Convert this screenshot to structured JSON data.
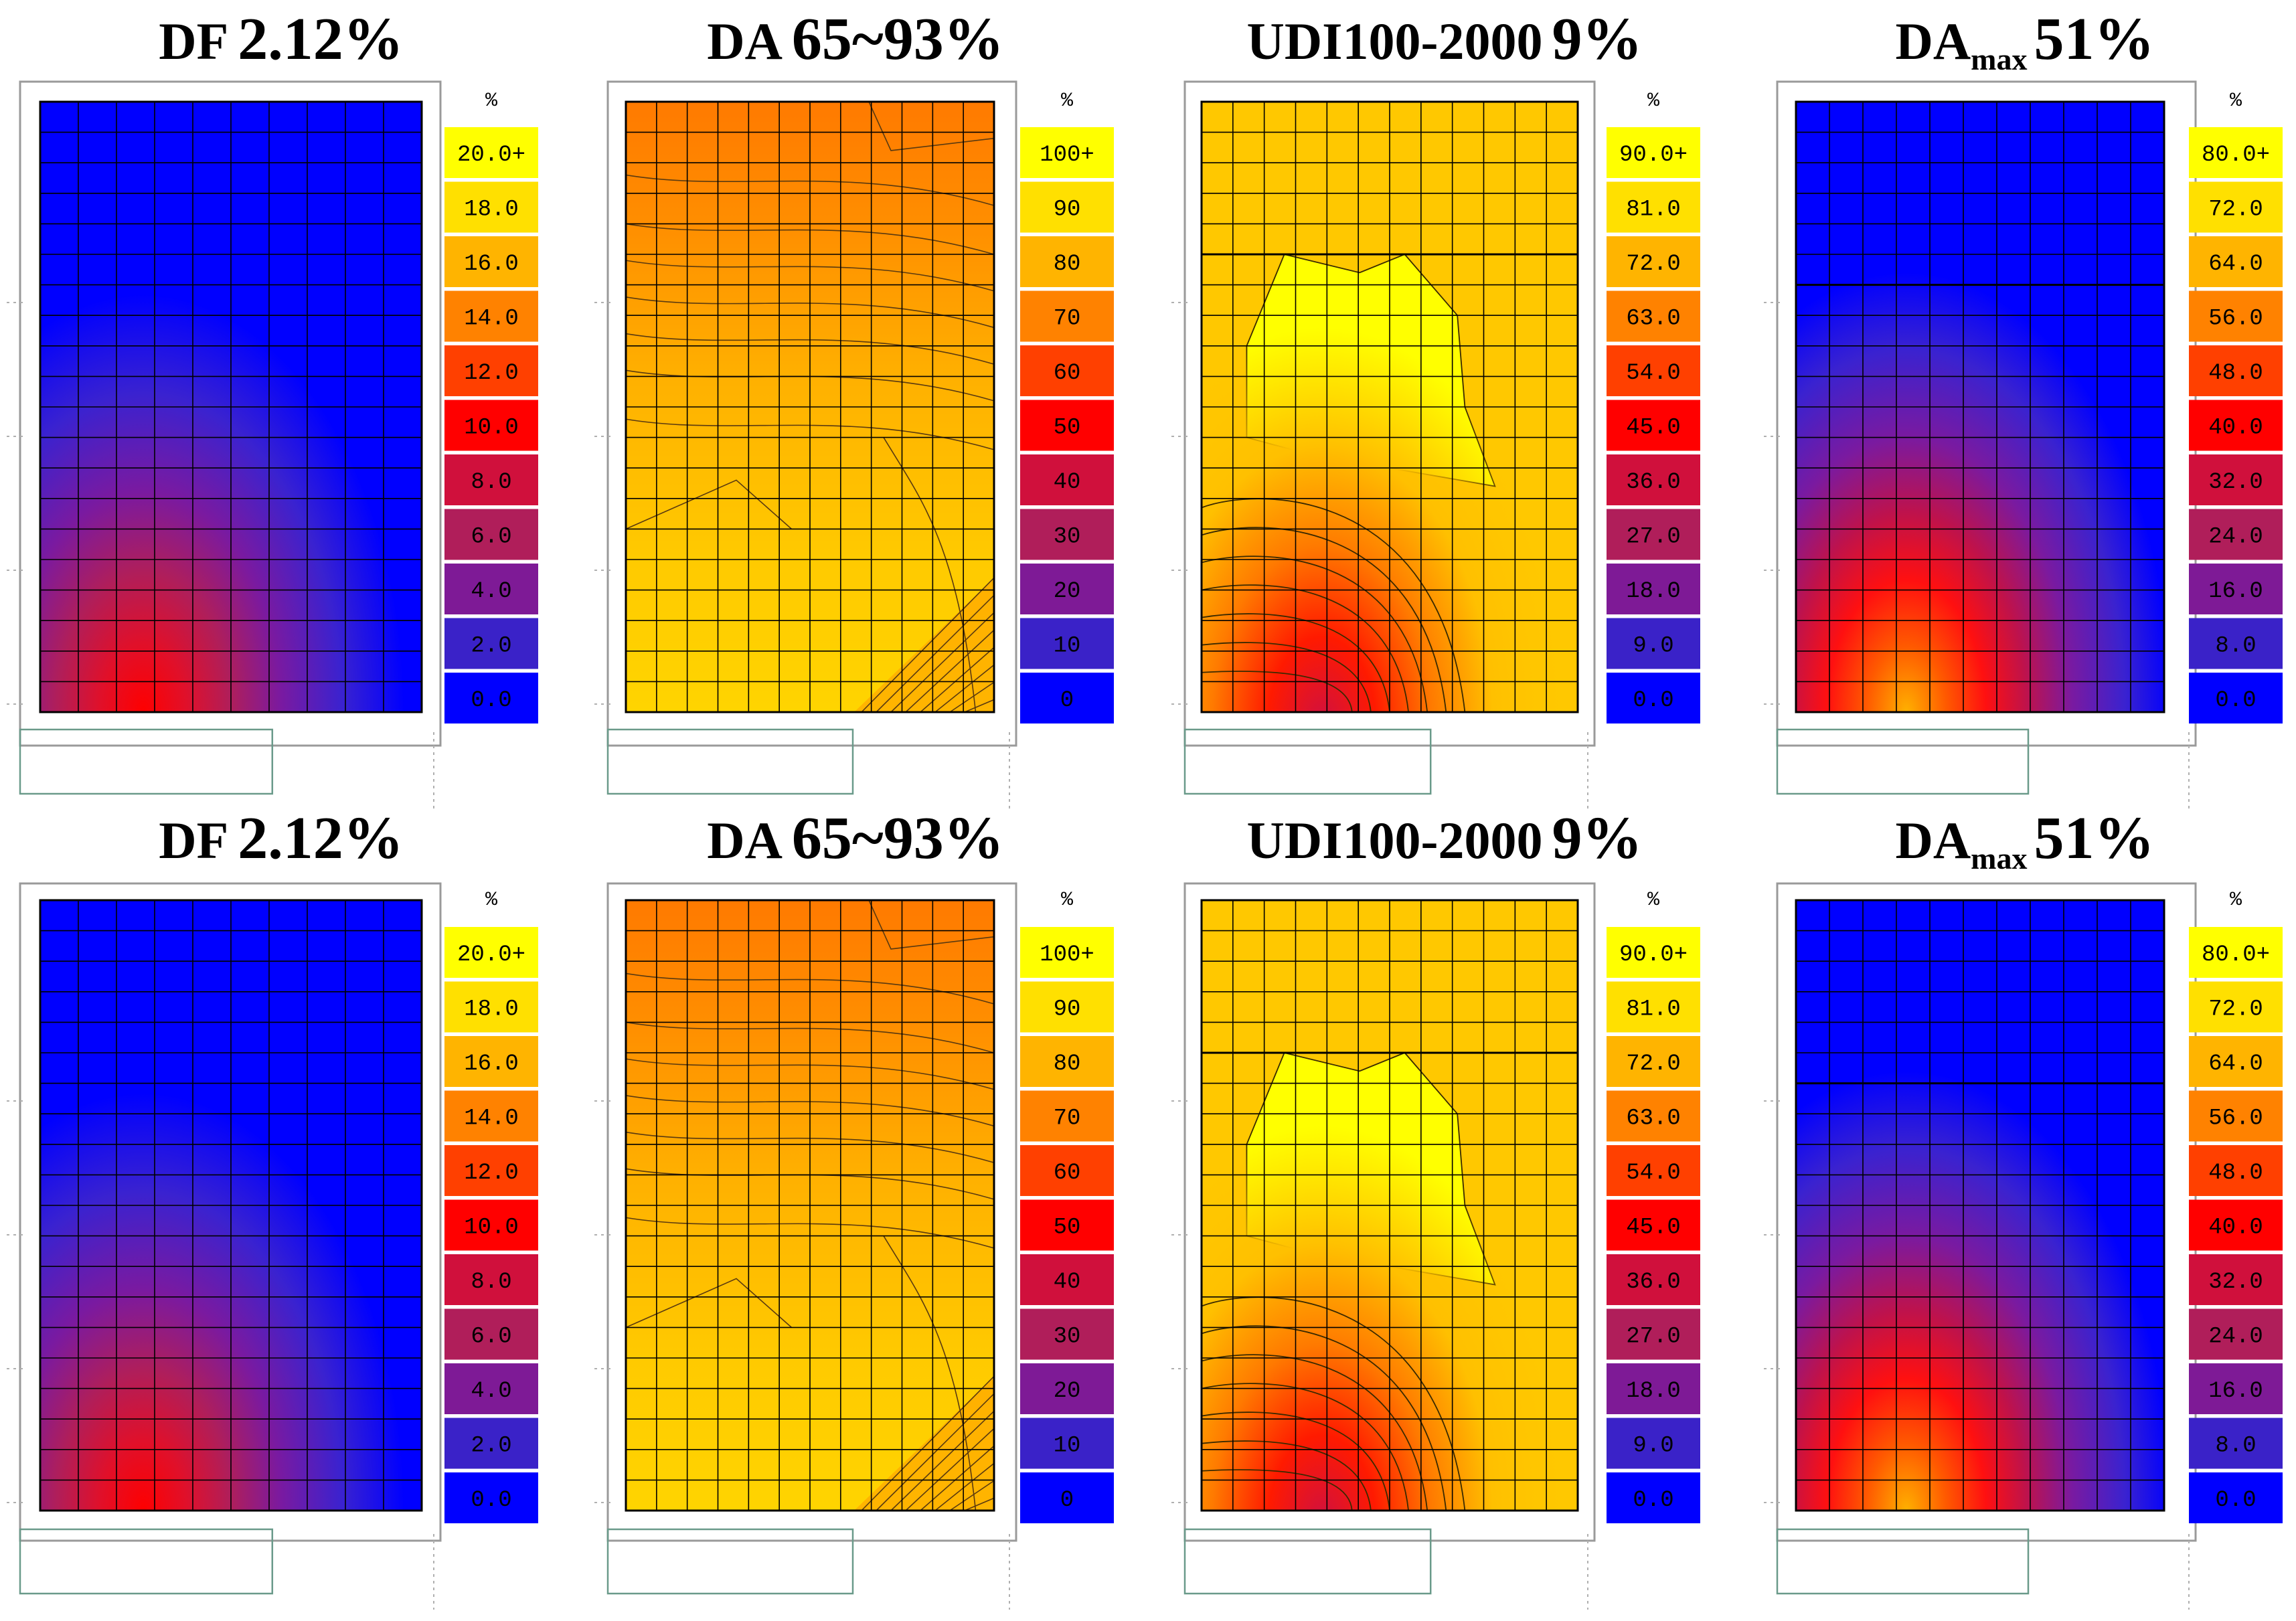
{
  "chart_data": {
    "type": "heatmap",
    "rows": [
      {
        "panels": [
          {
            "metric": "DF",
            "value": "2.12%",
            "unit": "%",
            "pattern": "df",
            "legend": [
              "20.0+",
              "18.0",
              "16.0",
              "14.0",
              "12.0",
              "10.0",
              "8.0",
              "6.0",
              "4.0",
              "2.0",
              "0.0"
            ]
          },
          {
            "metric": "DA",
            "value": "65~93%",
            "unit": "%",
            "pattern": "da",
            "legend": [
              "100+",
              "90",
              "80",
              "70",
              "60",
              "50",
              "40",
              "30",
              "20",
              "10",
              "0"
            ]
          },
          {
            "metric": "UDI100-2000",
            "value": "9%",
            "unit": "%",
            "pattern": "udi",
            "legend": [
              "90.0+",
              "81.0",
              "72.0",
              "63.0",
              "54.0",
              "45.0",
              "36.0",
              "27.0",
              "18.0",
              "9.0",
              "0.0"
            ]
          },
          {
            "metric": "DA",
            "sub": "max",
            "value": "51%",
            "unit": "%",
            "pattern": "damax",
            "legend": [
              "80.0+",
              "72.0",
              "64.0",
              "56.0",
              "48.0",
              "40.0",
              "32.0",
              "24.0",
              "16.0",
              "8.0",
              "0.0"
            ]
          }
        ]
      },
      {
        "panels": [
          {
            "metric": "DF",
            "value": "2.12%",
            "unit": "%",
            "pattern": "df",
            "legend": [
              "20.0+",
              "18.0",
              "16.0",
              "14.0",
              "12.0",
              "10.0",
              "8.0",
              "6.0",
              "4.0",
              "2.0",
              "0.0"
            ]
          },
          {
            "metric": "DA",
            "value": "65~93%",
            "unit": "%",
            "pattern": "da",
            "legend": [
              "100+",
              "90",
              "80",
              "70",
              "60",
              "50",
              "40",
              "30",
              "20",
              "10",
              "0"
            ]
          },
          {
            "metric": "UDI100-2000",
            "value": "9%",
            "unit": "%",
            "pattern": "udi",
            "legend": [
              "90.0+",
              "81.0",
              "72.0",
              "63.0",
              "54.0",
              "45.0",
              "36.0",
              "27.0",
              "18.0",
              "9.0",
              "0.0"
            ]
          },
          {
            "metric": "DA",
            "sub": "max",
            "value": "51%",
            "unit": "%",
            "pattern": "damax",
            "legend": [
              "80.0+",
              "72.0",
              "64.0",
              "56.0",
              "48.0",
              "40.0",
              "32.0",
              "24.0",
              "16.0",
              "8.0",
              "0.0"
            ]
          }
        ]
      }
    ],
    "legend_colors": [
      "#ffff00",
      "#ffe000",
      "#ffb400",
      "#ff8200",
      "#ff4000",
      "#ff0000",
      "#d0103c",
      "#b01e5a",
      "#7e1a96",
      "#3a22c8",
      "#0000ff"
    ]
  }
}
